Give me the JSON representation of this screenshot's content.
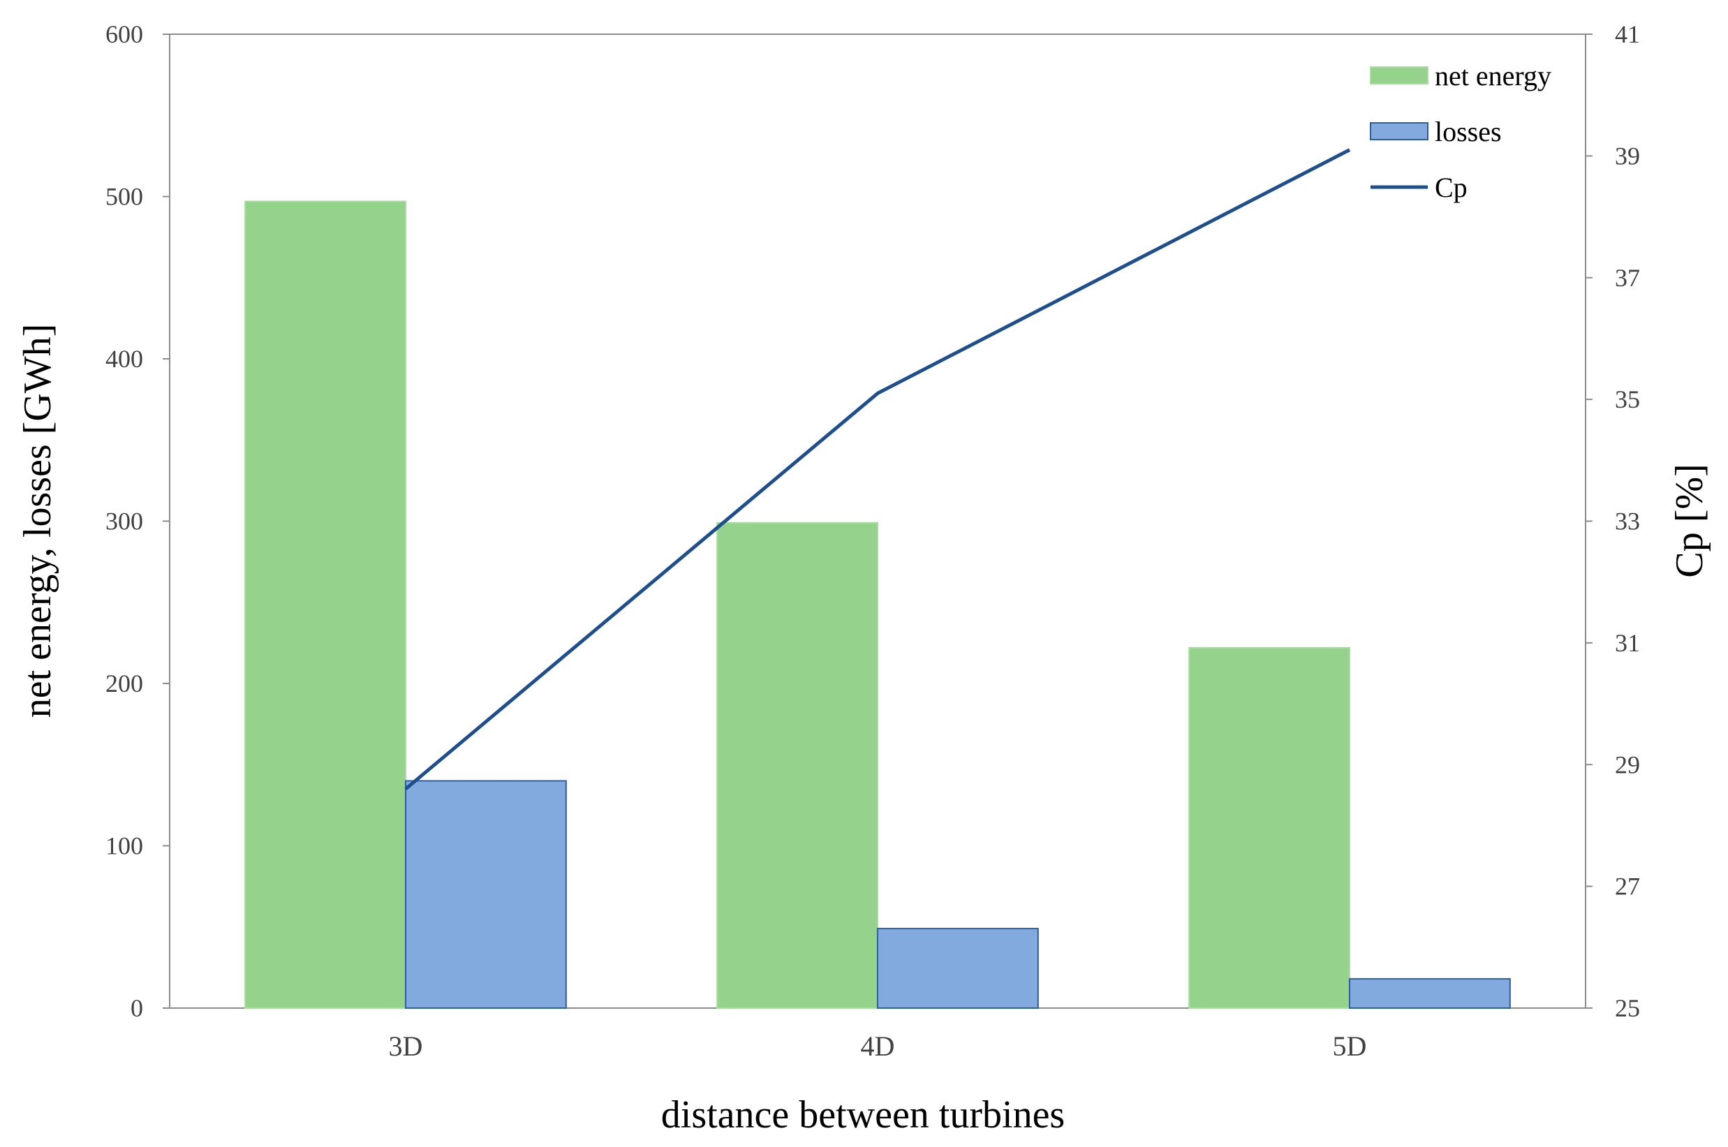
{
  "chart_data": {
    "type": "bar",
    "categories": [
      "3D",
      "4D",
      "5D"
    ],
    "series": [
      {
        "name": "net energy",
        "kind": "bar",
        "axis": "left",
        "color": "#95d28b",
        "values": [
          497,
          299,
          222
        ]
      },
      {
        "name": "losses",
        "kind": "bar",
        "axis": "left",
        "color": "#82aade",
        "values": [
          140,
          49,
          18
        ]
      },
      {
        "name": "Cp",
        "kind": "line",
        "axis": "right",
        "color": "#1f4e8c",
        "values": [
          28.6,
          35.1,
          39.1
        ]
      }
    ],
    "xlabel": "distance between turbines",
    "ylabel": "net energy, losses [GWh]",
    "y2label": "Cp [%]",
    "ylim": [
      0,
      600
    ],
    "y2lim": [
      25,
      41
    ],
    "yticks": [
      "0",
      "100",
      "200",
      "300",
      "400",
      "500",
      "600"
    ],
    "y2ticks": [
      "25",
      "27",
      "29",
      "31",
      "33",
      "35",
      "37",
      "39",
      "41"
    ],
    "grid": false,
    "legend_position": "top-right"
  }
}
